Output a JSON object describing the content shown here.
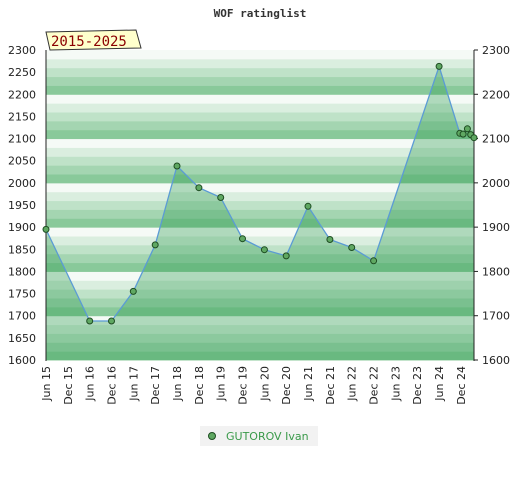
{
  "chart_data": {
    "type": "area",
    "title": "WOF ratinglist",
    "badge": "2015-2025",
    "ylim": [
      1600,
      2300
    ],
    "y_ticks_left": [
      1600,
      1650,
      1700,
      1750,
      1800,
      1850,
      1900,
      1950,
      2000,
      2050,
      2100,
      2150,
      2200,
      2250,
      2300
    ],
    "y_ticks_right": [
      1600,
      1700,
      1800,
      1900,
      2000,
      2100,
      2200,
      2300
    ],
    "x_ticks": [
      "Jun 15",
      "Dec 15",
      "Jun 16",
      "Dec 16",
      "Jun 17",
      "Dec 17",
      "Jun 18",
      "Dec 18",
      "Jun 19",
      "Dec 19",
      "Jun 20",
      "Dec 20",
      "Jun 21",
      "Dec 21",
      "Jun 22",
      "Dec 22",
      "Jun 23",
      "Dec 23",
      "Jun 24",
      "Dec 24"
    ],
    "x_range": [
      0,
      19.6
    ],
    "grid": true,
    "legend_position": "bottom-center",
    "colors": {
      "line": "#5b9bd5",
      "marker_fill": "#5fa862",
      "marker_stroke": "#1e4d22",
      "band_dark": "#7cc38f",
      "band_light": "#ffffff",
      "legend_text": "#3a9a4a"
    },
    "series": [
      {
        "name": "GUTOROV Ivan",
        "x": [
          0,
          2,
          3,
          4,
          5,
          6,
          7,
          8,
          9,
          10,
          11,
          12,
          13,
          14,
          15,
          18,
          18.95,
          19.1,
          19.3,
          19.45,
          19.6
        ],
        "y": [
          1895,
          1688,
          1688,
          1755,
          1860,
          2038,
          1989,
          1967,
          1874,
          1849,
          1835,
          1947,
          1872,
          1854,
          1824,
          2263,
          2112,
          2110,
          2122,
          2109,
          2102
        ]
      }
    ]
  }
}
